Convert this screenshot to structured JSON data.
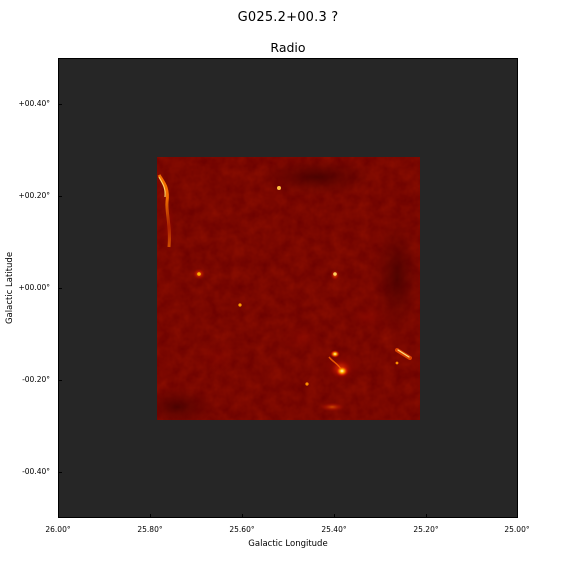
{
  "title": "G025.2+00.3 ?",
  "subtitle": "Radio",
  "axes": {
    "xlabel": "Galactic Longitude",
    "ylabel": "Galactic Latitude",
    "x_ticks": [
      "26.00°",
      "25.80°",
      "25.60°",
      "25.40°",
      "25.20°",
      "25.00°"
    ],
    "y_ticks": [
      "+00.40°",
      "+00.20°",
      "+00.00°",
      "-00.20°",
      "-00.40°"
    ]
  },
  "colors": {
    "background_frame": "#262626",
    "colormap": "hot",
    "image_base": "#6a0000"
  }
}
